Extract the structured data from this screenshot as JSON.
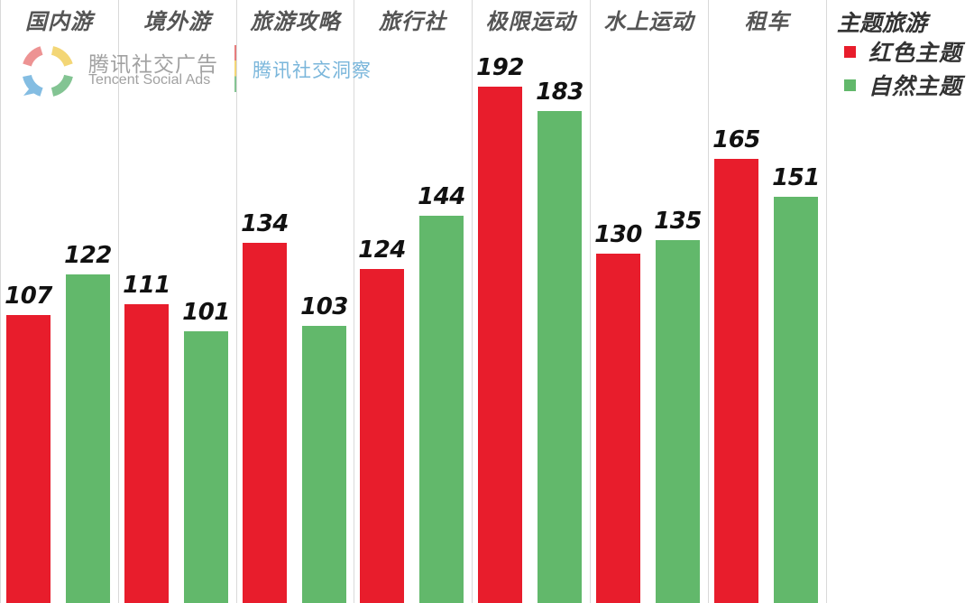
{
  "chart_data": {
    "type": "bar",
    "title": "",
    "xlabel": "",
    "ylabel": "",
    "ylim": [
      0,
      224
    ],
    "grid": false,
    "legend_position": "top-right",
    "legend_title": "主题旅游",
    "categories": [
      "国内游",
      "境外游",
      "旅游攻略",
      "旅行社",
      "极限运动",
      "水上运动",
      "租车"
    ],
    "series": [
      {
        "name": "红色主题",
        "color": "#e81d2c",
        "values": [
          107,
          111,
          134,
          124,
          192,
          130,
          165
        ]
      },
      {
        "name": "自然主题",
        "color": "#62b86b",
        "values": [
          122,
          101,
          103,
          144,
          183,
          135,
          151
        ]
      }
    ]
  },
  "legend": {
    "title": "主题旅游",
    "items": [
      {
        "label": "红色主题",
        "color": "#e81d2c"
      },
      {
        "label": "自然主题",
        "color": "#62b86b"
      }
    ]
  },
  "watermark": {
    "brand_cn": "腾讯社交广告",
    "brand_en": "Tencent Social Ads",
    "insight": "腾讯社交洞察"
  },
  "colors": {
    "divider": "#d9d9d9",
    "category_text": "#555555",
    "value_text": "#111111"
  }
}
